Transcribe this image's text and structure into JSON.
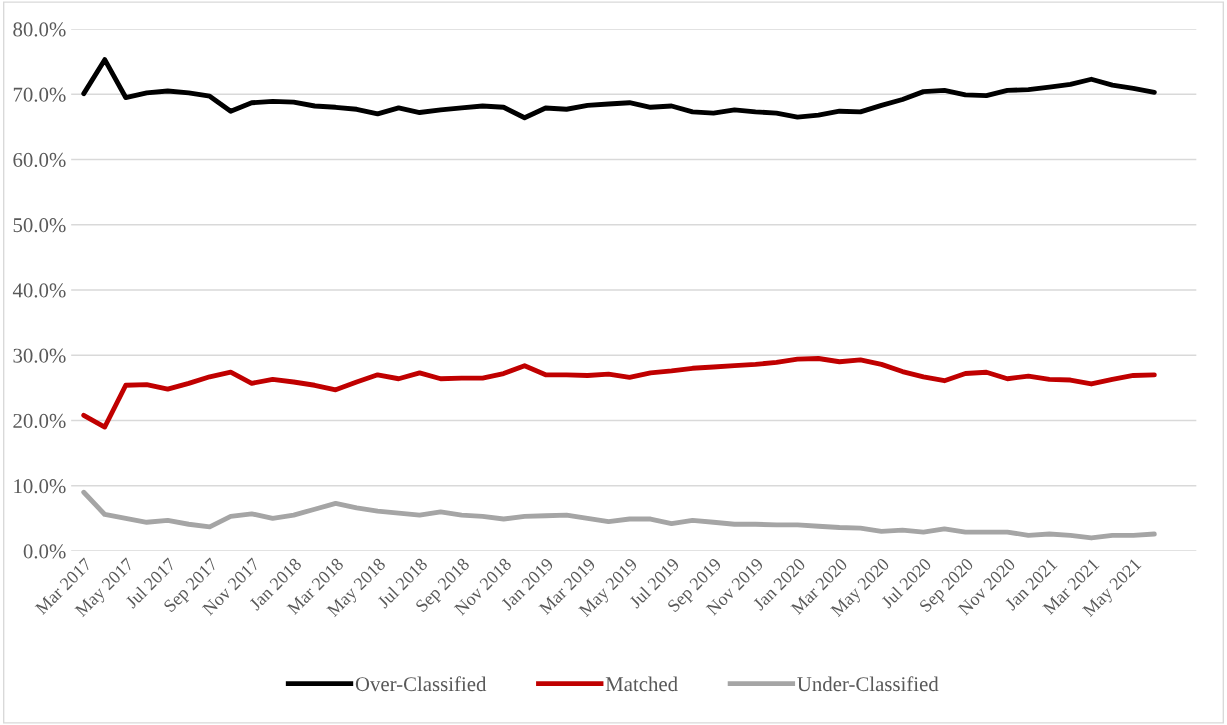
{
  "chart_data": {
    "type": "line",
    "categories": [
      "Mar 2017",
      null,
      "May 2017",
      null,
      "Jul 2017",
      null,
      "Sep 2017",
      null,
      "Nov 2017",
      null,
      "Jan 2018",
      null,
      "Mar 2018",
      null,
      "May 2018",
      null,
      "Jul 2018",
      null,
      "Sep 2018",
      null,
      "Nov 2018",
      null,
      "Jan 2019",
      null,
      "Mar 2019",
      null,
      "May 2019",
      null,
      "Jul 2019",
      null,
      "Sep 2019",
      null,
      "Nov 2019",
      null,
      "Jan 2020",
      null,
      "Mar 2020",
      null,
      "May 2020",
      null,
      "Jul 2020",
      null,
      "Sep 2020",
      null,
      "Nov 2020",
      null,
      "Jan 2021",
      null,
      "Mar 2021",
      null,
      "May 2021",
      null
    ],
    "series": [
      {
        "name": "Over-Classified",
        "color": "#000000",
        "values": [
          70.1,
          75.3,
          69.5,
          70.2,
          70.5,
          70.2,
          69.7,
          67.4,
          68.7,
          68.9,
          68.8,
          68.2,
          68.0,
          67.7,
          67.0,
          67.9,
          67.2,
          67.6,
          67.9,
          68.2,
          68.0,
          66.4,
          67.9,
          67.7,
          68.3,
          68.5,
          68.7,
          68.0,
          68.2,
          67.3,
          67.1,
          67.6,
          67.3,
          67.1,
          66.5,
          66.8,
          67.4,
          67.3,
          68.3,
          69.2,
          70.4,
          70.6,
          69.9,
          69.8,
          70.6,
          70.7,
          71.1,
          71.5,
          72.3,
          71.4,
          70.9,
          70.3
        ]
      },
      {
        "name": "Matched",
        "color": "#c00000",
        "values": [
          20.8,
          19.0,
          25.4,
          25.5,
          24.8,
          25.7,
          26.7,
          27.4,
          25.7,
          26.3,
          25.9,
          25.4,
          24.7,
          25.9,
          27.0,
          26.4,
          27.3,
          26.4,
          26.5,
          26.5,
          27.2,
          28.4,
          27.0,
          27.0,
          26.9,
          27.1,
          26.6,
          27.3,
          27.6,
          28.0,
          28.2,
          28.4,
          28.6,
          28.9,
          29.4,
          29.5,
          29.0,
          29.3,
          28.6,
          27.5,
          26.7,
          26.1,
          27.2,
          27.4,
          26.4,
          26.8,
          26.3,
          26.2,
          25.6,
          26.3,
          26.9,
          27.0
        ]
      },
      {
        "name": "Under-Classified",
        "color": "#a5a5a5",
        "values": [
          9.0,
          5.6,
          5.0,
          4.4,
          4.7,
          4.1,
          3.7,
          5.3,
          5.7,
          5.0,
          5.5,
          6.4,
          7.3,
          6.6,
          6.1,
          5.8,
          5.5,
          6.0,
          5.5,
          5.3,
          4.9,
          5.3,
          5.4,
          5.5,
          5.0,
          4.5,
          4.9,
          4.9,
          4.2,
          4.7,
          4.4,
          4.1,
          4.1,
          4.0,
          4.0,
          3.8,
          3.6,
          3.5,
          3.0,
          3.2,
          2.9,
          3.4,
          2.9,
          2.9,
          2.9,
          2.4,
          2.6,
          2.4,
          2.0,
          2.4,
          2.4,
          2.6
        ]
      }
    ],
    "ylim": [
      0,
      80
    ],
    "yticks": [
      {
        "value": 0,
        "label": "0.0%"
      },
      {
        "value": 10,
        "label": "10.0%"
      },
      {
        "value": 20,
        "label": "20.0%"
      },
      {
        "value": 30,
        "label": "30.0%"
      },
      {
        "value": 40,
        "label": "40.0%"
      },
      {
        "value": 50,
        "label": "50.0%"
      },
      {
        "value": 60,
        "label": "60.0%"
      },
      {
        "value": 70,
        "label": "70.0%"
      },
      {
        "value": 80,
        "label": "80.0%"
      }
    ],
    "grid": "y",
    "legend": "bottom",
    "marker": "none",
    "line_style": "solid"
  }
}
